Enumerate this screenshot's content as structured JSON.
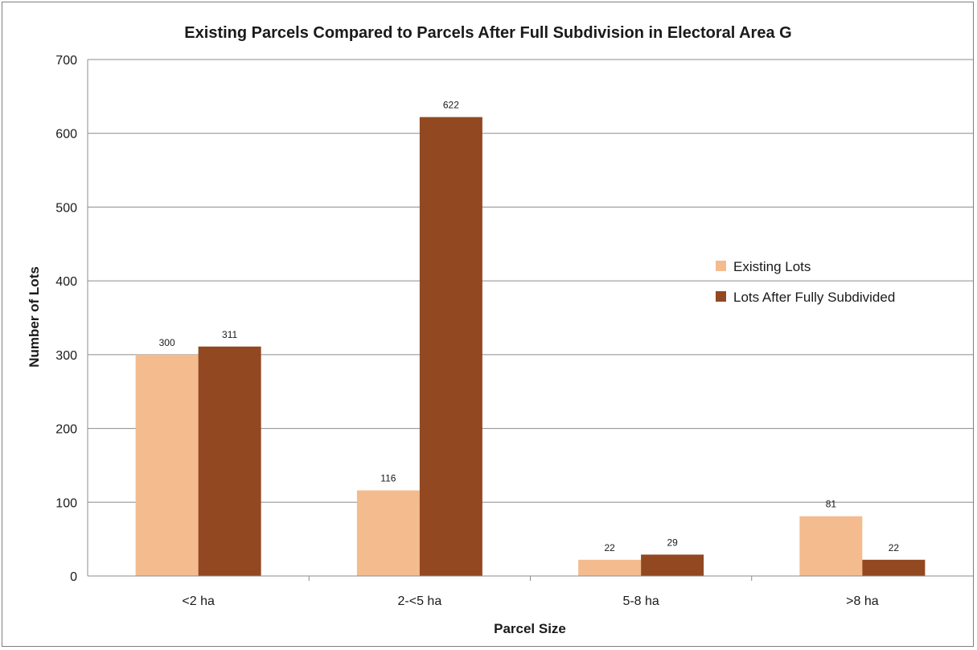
{
  "chart_data": {
    "type": "bar",
    "title": "Existing Parcels Compared to Parcels After Full Subdivision in Electoral Area G",
    "xlabel": "Parcel Size",
    "ylabel": "Number of Lots",
    "categories": [
      "<2 ha",
      "2-<5 ha",
      "5-8 ha",
      ">8 ha"
    ],
    "series": [
      {
        "name": "Existing Lots",
        "values": [
          300,
          116,
          22,
          81
        ],
        "color": "#f4bc8e"
      },
      {
        "name": "Lots After Fully Subdivided",
        "values": [
          311,
          622,
          29,
          22
        ],
        "color": "#924821"
      }
    ],
    "ylim": [
      0,
      700
    ],
    "yticks": [
      0,
      100,
      200,
      300,
      400,
      500,
      600,
      700
    ],
    "grid": true,
    "legend_position": "right"
  }
}
